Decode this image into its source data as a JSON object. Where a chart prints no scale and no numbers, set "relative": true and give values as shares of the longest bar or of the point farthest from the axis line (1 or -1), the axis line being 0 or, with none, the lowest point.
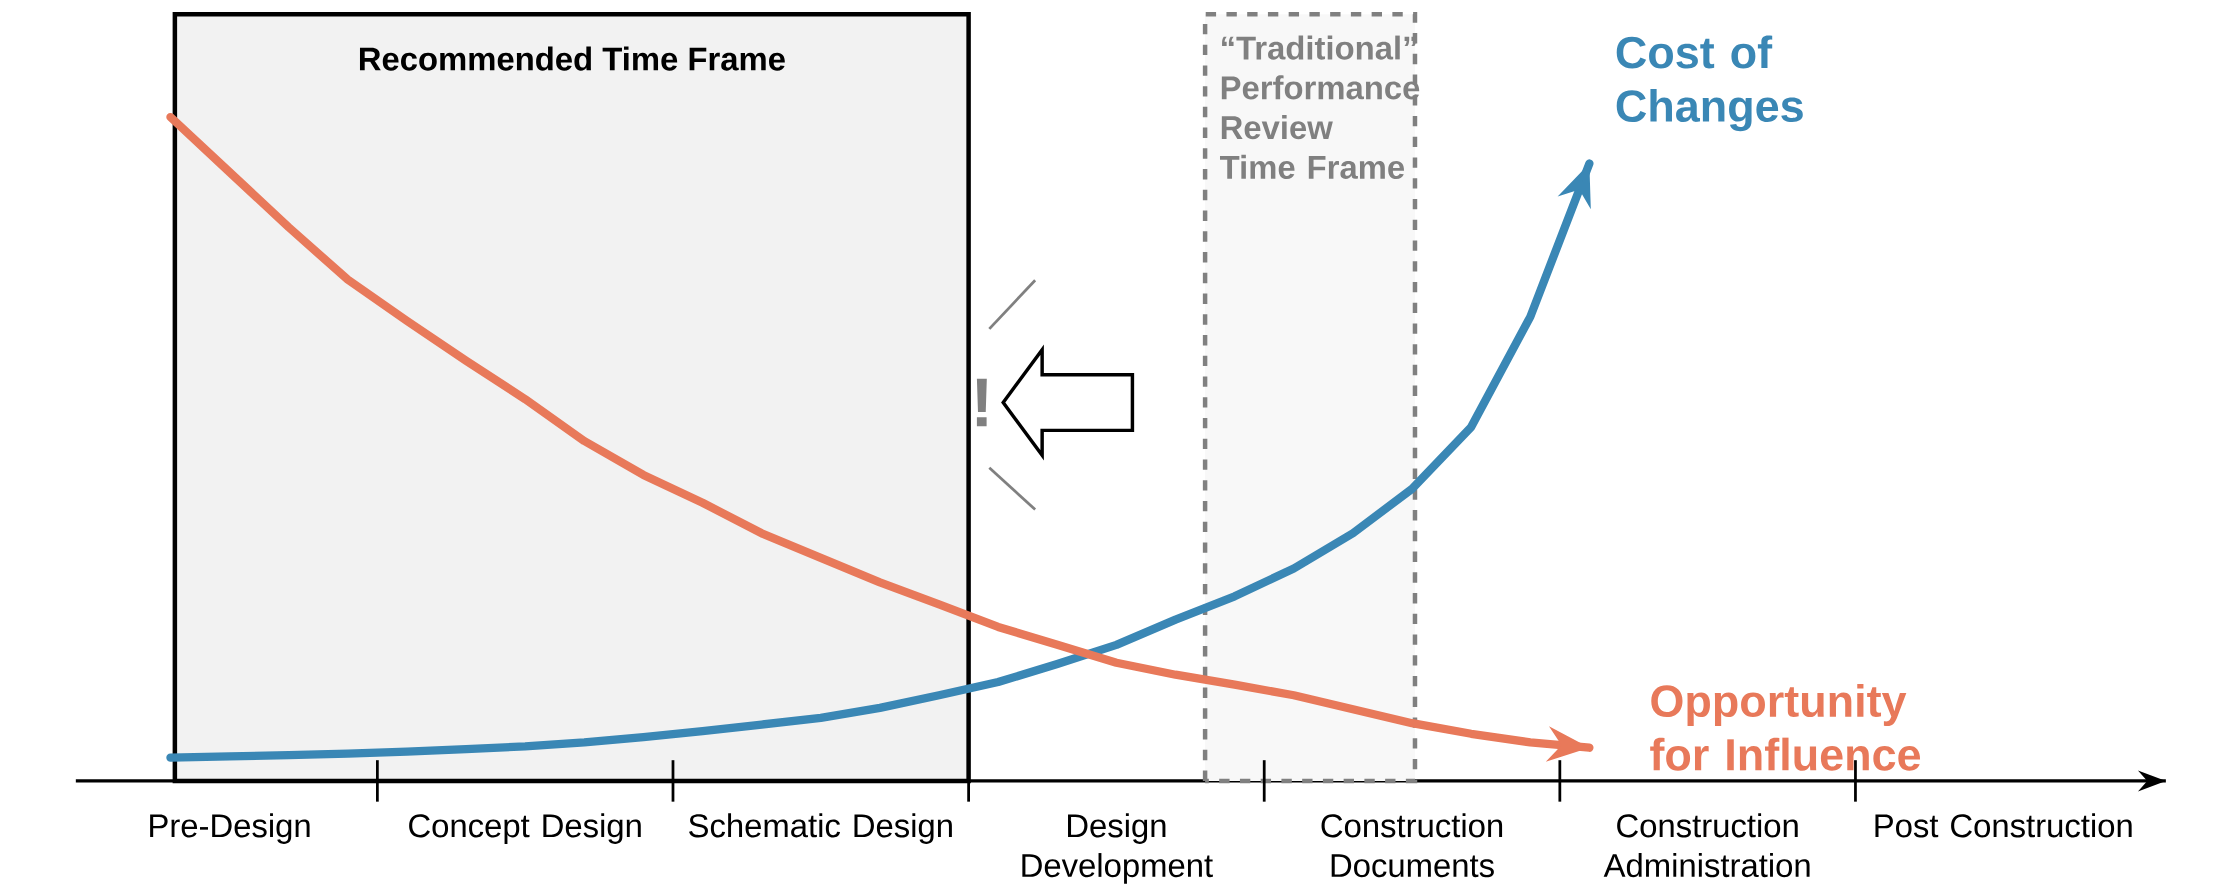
{
  "chart_data": {
    "type": "line",
    "relative": true,
    "categories": [
      null,
      null,
      "Pre-Design",
      null,
      null,
      null,
      null,
      "Concept Design",
      null,
      null,
      null,
      null,
      "Schematic Design",
      null,
      null,
      null,
      null,
      "Design Development",
      null,
      null,
      null,
      null,
      "Construction Documents",
      null,
      null,
      null,
      null,
      "Construction Administration",
      null,
      null,
      null,
      null,
      "Post Construction",
      null,
      null
    ],
    "series": [
      {
        "name": "Cost of Changes",
        "color": "#3a87b5",
        "values": [
          null,
          0.035,
          0.037,
          0.039,
          0.041,
          0.044,
          0.048,
          0.052,
          0.058,
          0.066,
          0.075,
          0.085,
          0.095,
          0.11,
          0.129,
          0.149,
          0.176,
          0.205,
          0.243,
          0.278,
          0.32,
          0.373,
          0.44,
          0.533,
          0.699,
          0.93,
          null,
          null,
          null,
          null,
          null,
          null,
          null,
          null,
          null
        ]
      },
      {
        "name": "Opportunity for Influence",
        "color": "#e8795a",
        "values": [
          null,
          1.0,
          0.917,
          0.834,
          0.755,
          0.693,
          0.633,
          0.575,
          0.512,
          0.461,
          0.419,
          0.373,
          0.336,
          0.299,
          0.266,
          0.232,
          0.205,
          0.178,
          0.16,
          0.145,
          0.129,
          0.108,
          0.087,
          0.071,
          0.058,
          0.05,
          null,
          null,
          null,
          null,
          null,
          null,
          null,
          null,
          null
        ]
      }
    ],
    "annotations": [
      "Recommended Time Frame",
      "“Traditional” Performance Review Time Frame",
      "!"
    ]
  }
}
